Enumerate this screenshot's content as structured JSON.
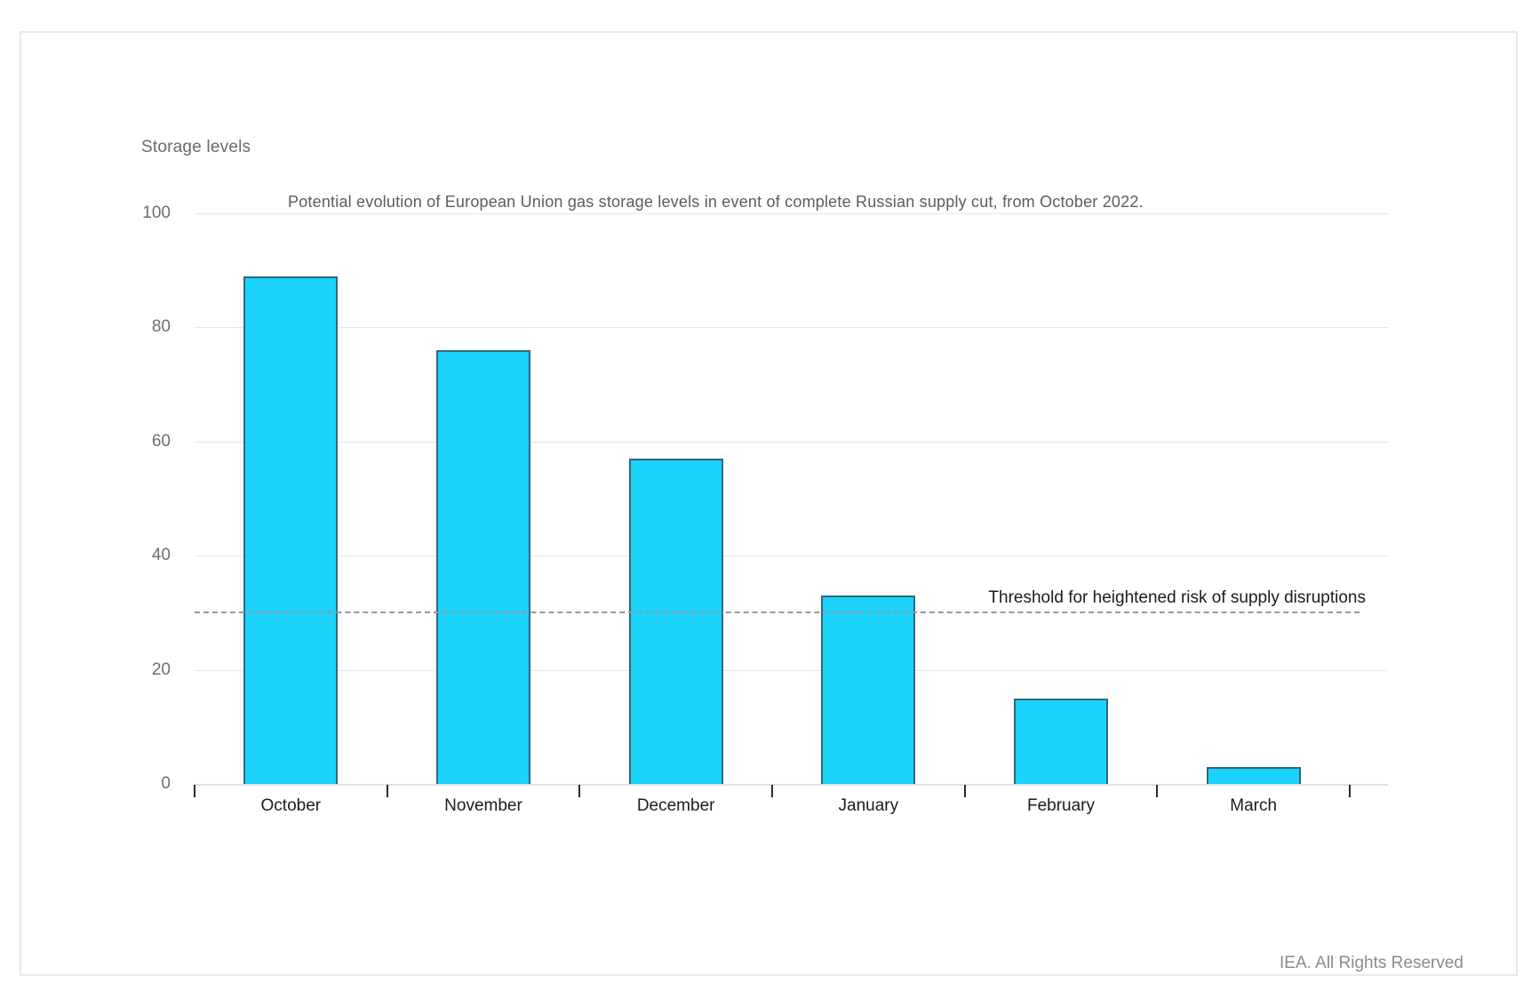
{
  "card": {
    "axis_label": "Storage levels",
    "footer": "IEA. All Rights Reserved"
  },
  "chart_data": {
    "type": "bar",
    "title": "Potential evolution of European Union gas storage levels in event of complete Russian supply cut, from October 2022.",
    "categories": [
      "October",
      "November",
      "December",
      "January",
      "February",
      "March"
    ],
    "values": [
      89,
      76,
      57,
      33,
      15,
      3
    ],
    "ylabel": "Storage levels",
    "xlabel": "",
    "ylim": [
      0,
      100
    ],
    "yticks": [
      0,
      20,
      40,
      60,
      80,
      100
    ],
    "grid": true,
    "legend_position": "none",
    "threshold_line": {
      "value": 30,
      "style": "dashed",
      "label": "Threshold for heightened risk of supply disruptions"
    },
    "colors": {
      "bar_fill": "#1BD2FA",
      "bar_border": "#2F6880",
      "gridline": "#E8E8E8",
      "dashed_line": "#999999"
    }
  }
}
